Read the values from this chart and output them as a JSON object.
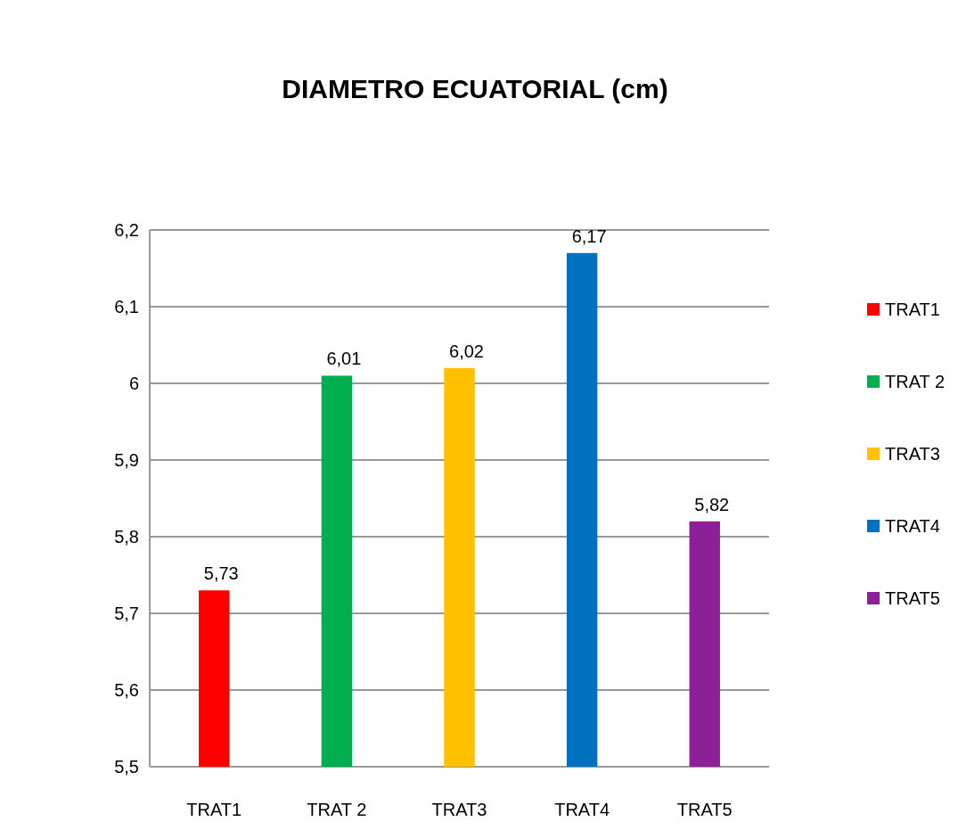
{
  "chart_data": {
    "type": "bar",
    "title": "DIAMETRO ECUATORIAL (cm)",
    "categories": [
      "TRAT1",
      "TRAT 2",
      "TRAT3",
      "TRAT4",
      "TRAT5"
    ],
    "series": [
      {
        "name": "TRAT1",
        "color": "#ff0000",
        "values": [
          5.73,
          null,
          null,
          null,
          null
        ],
        "value_labels": [
          "5,73",
          null,
          null,
          null,
          null
        ]
      },
      {
        "name": "TRAT 2",
        "color": "#00b050",
        "values": [
          null,
          6.01,
          null,
          null,
          null
        ],
        "value_labels": [
          null,
          "6,01",
          null,
          null,
          null
        ]
      },
      {
        "name": "TRAT3",
        "color": "#ffc000",
        "values": [
          null,
          null,
          6.02,
          null,
          null
        ],
        "value_labels": [
          null,
          null,
          "6,02",
          null,
          null
        ]
      },
      {
        "name": "TRAT4",
        "color": "#0070c0",
        "values": [
          null,
          null,
          null,
          6.17,
          null
        ],
        "value_labels": [
          null,
          null,
          null,
          "6,17",
          null
        ]
      },
      {
        "name": "TRAT5",
        "color": "#8b2097",
        "values": [
          null,
          null,
          null,
          null,
          5.82
        ],
        "value_labels": [
          null,
          null,
          null,
          null,
          "5,82"
        ]
      }
    ],
    "ylim": [
      5.5,
      6.2
    ],
    "yticks": [
      {
        "value": 5.5,
        "label": "5,5"
      },
      {
        "value": 5.6,
        "label": "5,6"
      },
      {
        "value": 5.7,
        "label": "5,7"
      },
      {
        "value": 5.8,
        "label": "5,8"
      },
      {
        "value": 5.9,
        "label": "5,9"
      },
      {
        "value": 6,
        "label": "6"
      },
      {
        "value": 6.1,
        "label": "6,1"
      },
      {
        "value": 6.2,
        "label": "6,2"
      }
    ],
    "grid": "y",
    "legend": "right"
  }
}
